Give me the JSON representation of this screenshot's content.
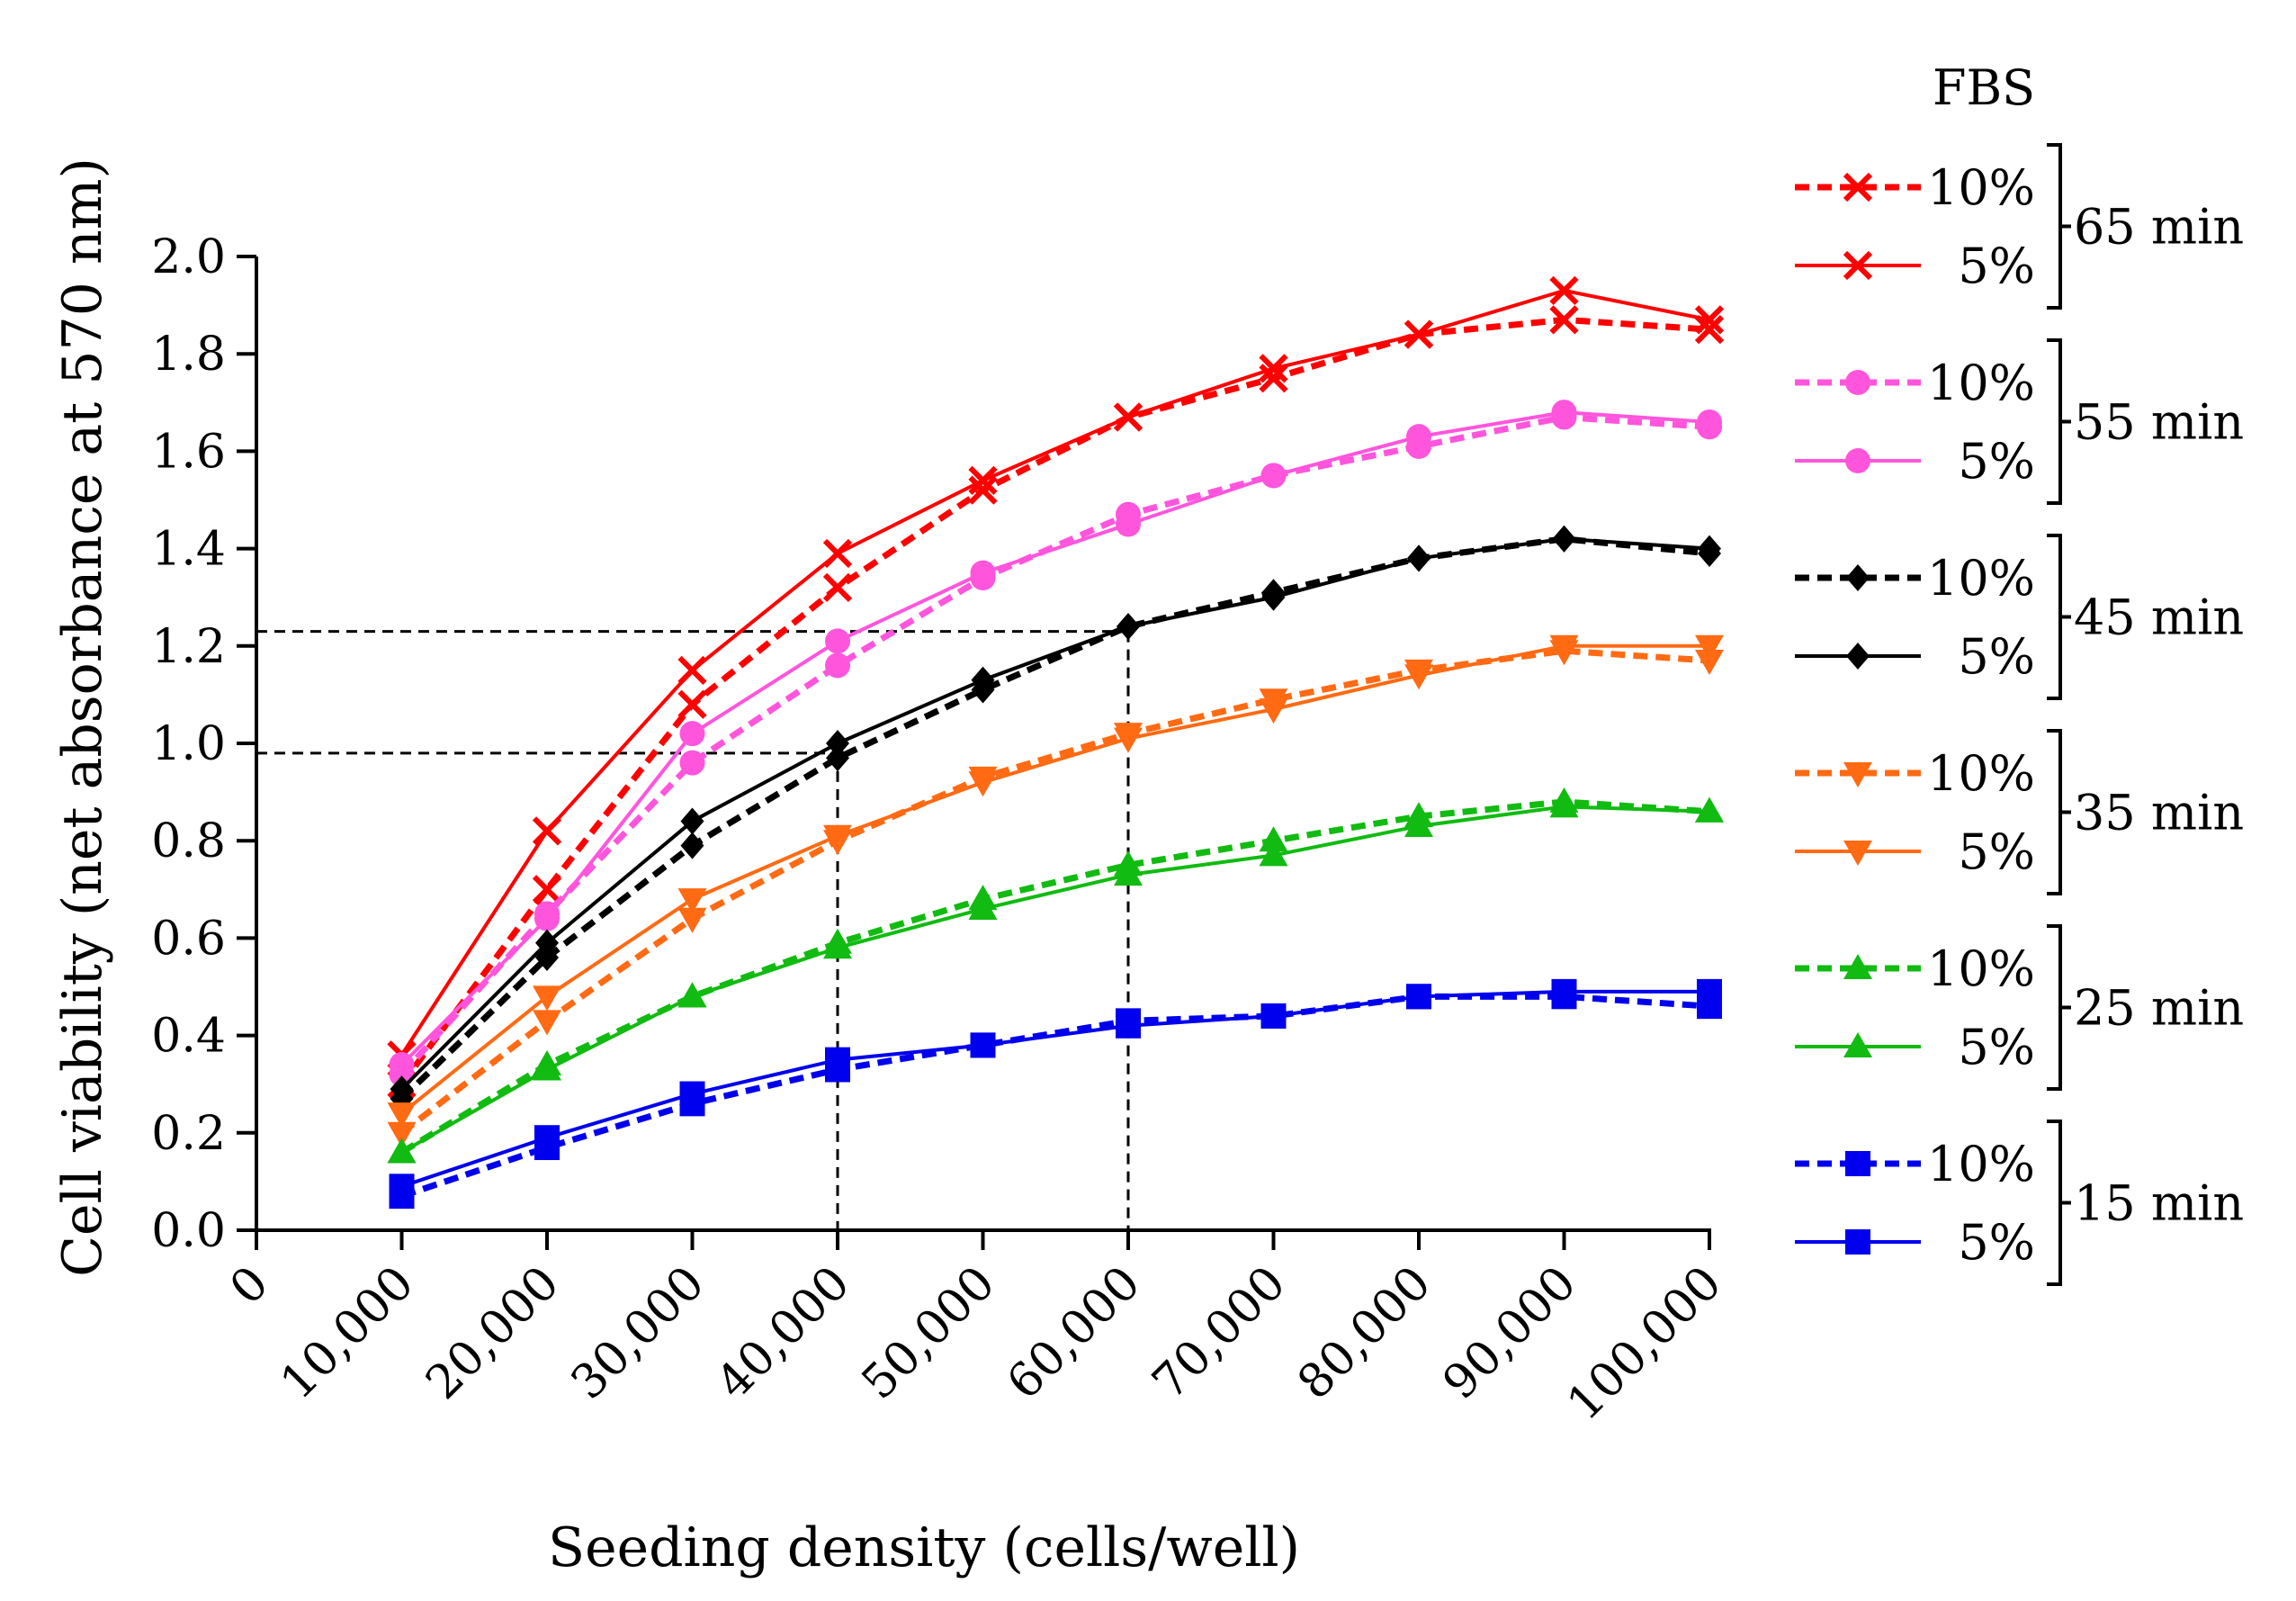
{
  "chart_data": {
    "type": "line",
    "title": "",
    "xlabel": "Seeding density (cells/well)",
    "ylabel": "Cell viability (net absorbance at 570 nm)",
    "xlim": [
      0,
      100000
    ],
    "ylim": [
      0,
      2.0
    ],
    "x_ticks": [
      {
        "value": 0,
        "label": "0"
      },
      {
        "value": 10000,
        "label": "10,000"
      },
      {
        "value": 20000,
        "label": "20,000"
      },
      {
        "value": 30000,
        "label": "30,000"
      },
      {
        "value": 40000,
        "label": "40,000"
      },
      {
        "value": 50000,
        "label": "50,000"
      },
      {
        "value": 60000,
        "label": "60,000"
      },
      {
        "value": 70000,
        "label": "70,000"
      },
      {
        "value": 80000,
        "label": "80,000"
      },
      {
        "value": 90000,
        "label": "90,000"
      },
      {
        "value": 100000,
        "label": "100,000"
      }
    ],
    "y_ticks": [
      {
        "value": 0.0,
        "label": "0.0"
      },
      {
        "value": 0.2,
        "label": "0.2"
      },
      {
        "value": 0.4,
        "label": "0.4"
      },
      {
        "value": 0.6,
        "label": "0.6"
      },
      {
        "value": 0.8,
        "label": "0.8"
      },
      {
        "value": 1.0,
        "label": "1.0"
      },
      {
        "value": 1.2,
        "label": "1.2"
      },
      {
        "value": 1.4,
        "label": "1.4"
      },
      {
        "value": 1.6,
        "label": "1.6"
      },
      {
        "value": 1.8,
        "label": "1.8"
      },
      {
        "value": 2.0,
        "label": "2.0"
      }
    ],
    "grid": false,
    "legend_title": "FBS",
    "legend_position": "right",
    "x": [
      10000,
      20000,
      30000,
      40000,
      50000,
      60000,
      70000,
      80000,
      90000,
      100000
    ],
    "groups": [
      {
        "label": "65 min",
        "color": "#ff0000",
        "marker": "x",
        "series": [
          {
            "name": "10%",
            "dashed": true,
            "values": [
              0.3,
              0.7,
              1.08,
              1.32,
              1.52,
              1.67,
              1.75,
              1.84,
              1.87,
              1.85
            ]
          },
          {
            "name": "5%",
            "dashed": false,
            "values": [
              0.36,
              0.82,
              1.15,
              1.39,
              1.54,
              1.67,
              1.77,
              1.84,
              1.93,
              1.87
            ]
          }
        ]
      },
      {
        "label": "55 min",
        "color": "#ff55dd",
        "marker": "circle",
        "series": [
          {
            "name": "10%",
            "dashed": true,
            "values": [
              0.32,
              0.65,
              0.96,
              1.16,
              1.34,
              1.47,
              1.55,
              1.61,
              1.67,
              1.65
            ]
          },
          {
            "name": "5%",
            "dashed": false,
            "values": [
              0.34,
              0.64,
              1.02,
              1.21,
              1.35,
              1.45,
              1.55,
              1.63,
              1.68,
              1.66
            ]
          }
        ]
      },
      {
        "label": "45 min",
        "color": "#000000",
        "marker": "diamond",
        "series": [
          {
            "name": "10%",
            "dashed": true,
            "values": [
              0.27,
              0.56,
              0.79,
              0.97,
              1.11,
              1.24,
              1.31,
              1.38,
              1.42,
              1.39
            ]
          },
          {
            "name": "5%",
            "dashed": false,
            "values": [
              0.29,
              0.59,
              0.84,
              1.0,
              1.13,
              1.24,
              1.3,
              1.38,
              1.42,
              1.4
            ]
          }
        ]
      },
      {
        "label": "35 min",
        "color": "#ff6a13",
        "marker": "triangle-down",
        "series": [
          {
            "name": "10%",
            "dashed": true,
            "values": [
              0.2,
              0.43,
              0.64,
              0.8,
              0.93,
              1.02,
              1.09,
              1.15,
              1.19,
              1.17
            ]
          },
          {
            "name": "5%",
            "dashed": false,
            "values": [
              0.24,
              0.48,
              0.68,
              0.81,
              0.92,
              1.01,
              1.07,
              1.14,
              1.2,
              1.2
            ]
          }
        ]
      },
      {
        "label": "25 min",
        "color": "#11bb11",
        "marker": "triangle-up",
        "series": [
          {
            "name": "10%",
            "dashed": true,
            "values": [
              0.16,
              0.34,
              0.48,
              0.59,
              0.68,
              0.75,
              0.8,
              0.85,
              0.88,
              0.86
            ]
          },
          {
            "name": "5%",
            "dashed": false,
            "values": [
              0.16,
              0.33,
              0.48,
              0.58,
              0.66,
              0.73,
              0.77,
              0.83,
              0.87,
              0.86
            ]
          }
        ]
      },
      {
        "label": "15 min",
        "color": "#0000ee",
        "marker": "square",
        "series": [
          {
            "name": "10%",
            "dashed": true,
            "values": [
              0.07,
              0.17,
              0.26,
              0.33,
              0.38,
              0.43,
              0.44,
              0.48,
              0.48,
              0.46
            ]
          },
          {
            "name": "5%",
            "dashed": false,
            "values": [
              0.09,
              0.19,
              0.28,
              0.35,
              0.38,
              0.42,
              0.44,
              0.48,
              0.49,
              0.49
            ]
          }
        ]
      }
    ],
    "reference_lines": [
      {
        "x": 40000,
        "y": 0.98
      },
      {
        "x": 60000,
        "y": 1.23
      }
    ]
  }
}
